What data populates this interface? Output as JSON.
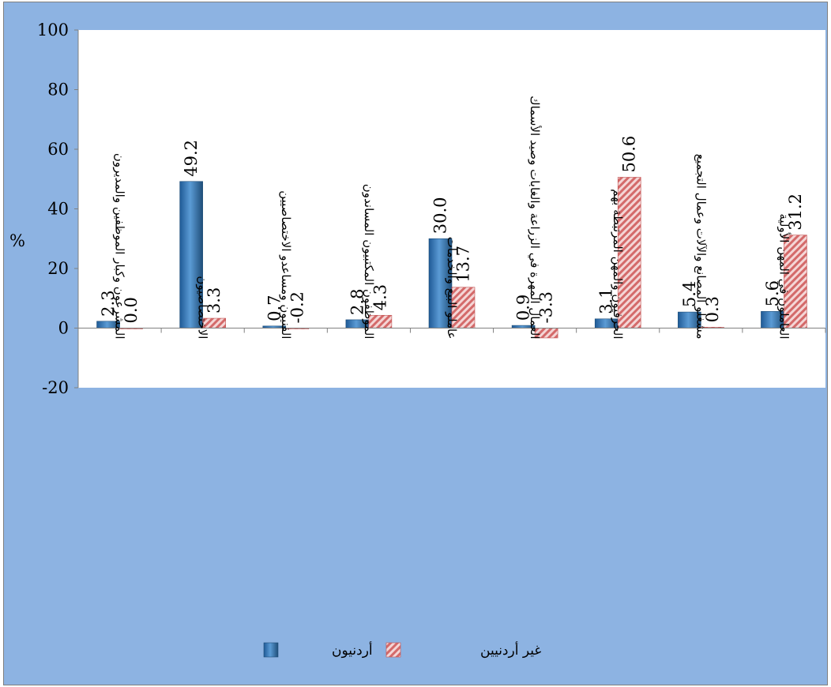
{
  "chart_data": {
    "type": "bar",
    "ylabel": "%",
    "ylim": [
      -20,
      100
    ],
    "yticks": [
      100,
      80,
      60,
      40,
      20,
      0,
      -20
    ],
    "grid": false,
    "legend_position": "bottom",
    "categories": [
      "المشرعون وكبار الموظفين والمديرون",
      "الاختصاصيون",
      "الفنيون ومساعدو الاختصاصيين",
      "الموظفون المكتبيون المساندون",
      "عاملو البيع والخدمات",
      "العمال المهرة في الزراعة والغابات وصيد الأسماك",
      "الحرفيون والمهن المرتبطة بهم",
      "مشغلو المصانع والآلات وعمال التجميع",
      "العاملون في المهن الأولية"
    ],
    "series": [
      {
        "name": "أردنيون",
        "color": "#2e75b6",
        "values": [
          2.3,
          49.2,
          0.7,
          2.8,
          30.0,
          0.9,
          3.1,
          5.4,
          5.6
        ],
        "labels": [
          "2.3",
          "49.2",
          "0.7",
          "2.8",
          "30.0",
          "0.9",
          "3.1",
          "5.4",
          "5.6"
        ]
      },
      {
        "name": "غير أردنيين",
        "color": "#e6a8a8",
        "values": [
          0.0,
          3.3,
          -0.2,
          4.3,
          13.7,
          -3.3,
          50.6,
          0.3,
          31.2
        ],
        "labels": [
          "0.0",
          "3.3",
          "-0.2",
          "4.3",
          "13.7",
          "-3.3",
          "50.6",
          "0.3",
          "31.2"
        ]
      }
    ]
  }
}
